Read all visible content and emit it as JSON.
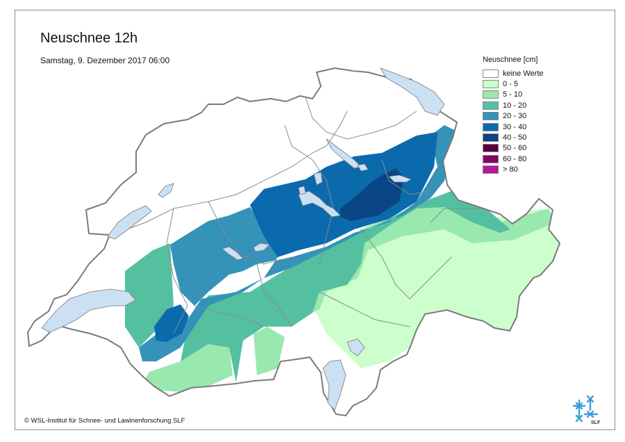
{
  "map": {
    "title": "Neuschnee 12h",
    "date": "Samstag, 9. Dezember 2017 06:00",
    "copyright": "© WSL-Institut für Schnee- und Lawinenforschung SLF",
    "logo_text": "SLF"
  },
  "legend": {
    "title": "Neuschnee [cm]",
    "items": [
      {
        "label": "keine Werte",
        "color": "#ffffff"
      },
      {
        "label": "0 - 5",
        "color": "#ccffcc"
      },
      {
        "label": "5 - 10",
        "color": "#99e8b0"
      },
      {
        "label": "10 - 20",
        "color": "#55c0a0"
      },
      {
        "label": "20 - 30",
        "color": "#3592b8"
      },
      {
        "label": "30 - 40",
        "color": "#0b6aac"
      },
      {
        "label": "40 - 50",
        "color": "#0a4585"
      },
      {
        "label": "50 - 60",
        "color": "#5c0038"
      },
      {
        "label": "60 - 80",
        "color": "#8a0068"
      },
      {
        "label": "> 80",
        "color": "#b3189e"
      }
    ]
  },
  "colors": {
    "lake": "#cce0f4",
    "border": "#777777"
  }
}
